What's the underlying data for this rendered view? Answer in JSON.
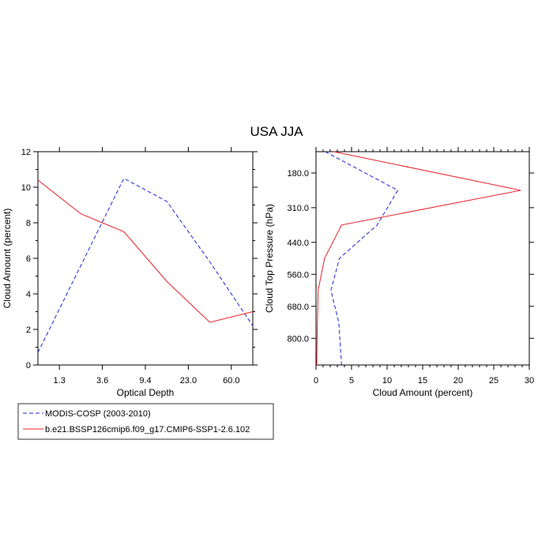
{
  "title": "USA JJA",
  "colors": {
    "modis": "#2222dd",
    "model": "#e8202a"
  },
  "legend": {
    "entries": [
      {
        "label": "MODIS-COSP (2003-2010)",
        "color": "#2222dd",
        "dash": true
      },
      {
        "label": "b.e21.BSSP126cmip6.f09_g17.CMIP6-SSP1-2.6.102",
        "color": "#e8202a",
        "dash": false
      }
    ]
  },
  "chart_data": [
    {
      "type": "line",
      "xlabel": "Optical Depth",
      "ylabel": "Cloud Amount (percent)",
      "x_index": [
        0,
        1,
        2,
        3,
        4,
        5
      ],
      "x_ticks": [
        "1.3",
        "3.6",
        "9.4",
        "23.0",
        "60.0"
      ],
      "ylim": [
        0,
        12
      ],
      "y_ticks": [
        "0",
        "2",
        "4",
        "6",
        "8",
        "10",
        "12"
      ],
      "series": [
        {
          "name": "MODIS-COSP (2003-2010)",
          "values": [
            0.7,
            5.6,
            10.5,
            9.2,
            5.8,
            2.2
          ]
        },
        {
          "name": "b.e21.BSSP126cmip6.f09_g17.CMIP6-SSP1-2.6.102",
          "values": [
            10.4,
            8.5,
            7.5,
            4.7,
            2.4,
            3.0
          ]
        }
      ]
    },
    {
      "type": "line",
      "xlabel": "Cloud Amount (percent)",
      "ylabel": "Cloud Top Pressure (hPa)",
      "xlim": [
        0,
        30
      ],
      "x_ticks": [
        "0",
        "5",
        "10",
        "15",
        "20",
        "25",
        "30"
      ],
      "ylim": [
        100,
        900
      ],
      "y_ticks": [
        "180.0",
        "310.0",
        "440.0",
        "560.0",
        "680.0",
        "800.0"
      ],
      "pressure": [
        100,
        245,
        375,
        500,
        620,
        740,
        900
      ],
      "series": [
        {
          "name": "MODIS-COSP (2003-2010)",
          "values": [
            1.3,
            11.5,
            8.6,
            3.3,
            2.1,
            3.2,
            3.6
          ]
        },
        {
          "name": "b.e21.BSSP126cmip6.f09_g17.CMIP6-SSP1-2.6.102",
          "values": [
            2.5,
            28.8,
            3.6,
            1.2,
            0.3,
            0.2,
            0.1
          ]
        }
      ]
    }
  ]
}
